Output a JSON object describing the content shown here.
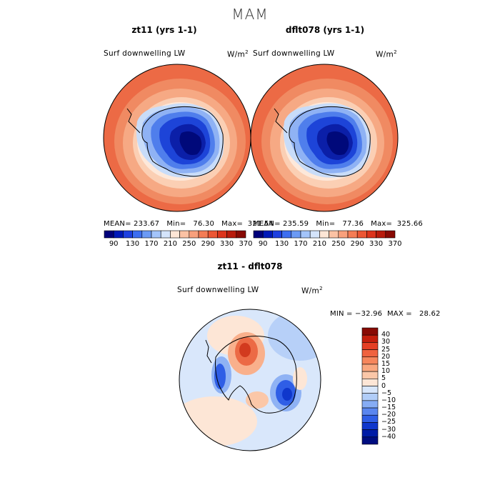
{
  "figure": {
    "title": "MAM"
  },
  "panels": [
    {
      "title": "zt11 (yrs 1-1)",
      "variable": "Surf downwelling LW",
      "units": "W/m",
      "units_exp": "2",
      "stats": "MEAN= 233.67   Min=   76.30   Max=  321.54"
    },
    {
      "title": "dflt078 (yrs 1-1)",
      "variable": "Surf downwelling LW",
      "units": "W/m",
      "units_exp": "2",
      "stats": "MEAN= 235.59   Min=   77.36   Max=  325.66"
    },
    {
      "title": "zt11 - dflt078",
      "variable": "Surf downwelling LW",
      "units": "W/m",
      "units_exp": "2",
      "stats": "MIN = −32.96  MAX =   28.62"
    }
  ],
  "colorbar_abs": {
    "tick_labels": [
      "90",
      "130",
      "170",
      "210",
      "250",
      "290",
      "330",
      "370"
    ],
    "colors": [
      "#00007a",
      "#0019b8",
      "#1e40e0",
      "#3d6ef0",
      "#6b9af5",
      "#a3c4fa",
      "#d4e4fb",
      "#fde6d6",
      "#fbc2a4",
      "#f8a07c",
      "#f47c55",
      "#ec5634",
      "#dc341c",
      "#b81b0c",
      "#880a04"
    ]
  },
  "colorbar_diff": {
    "tick_labels": [
      "40",
      "30",
      "25",
      "20",
      "15",
      "10",
      "5",
      "0",
      "−5",
      "−10",
      "−15",
      "−20",
      "−25",
      "−30",
      "−40"
    ],
    "colors": [
      "#880a04",
      "#c41e0c",
      "#e53f24",
      "#f0623e",
      "#f6865c",
      "#f9a77f",
      "#fbc7a8",
      "#fde6d6",
      "#d7e6fb",
      "#b1cdf8",
      "#86acf4",
      "#5a86ef",
      "#2f5ee6",
      "#0f37cc",
      "#001ca6",
      "#000d80"
    ]
  }
}
